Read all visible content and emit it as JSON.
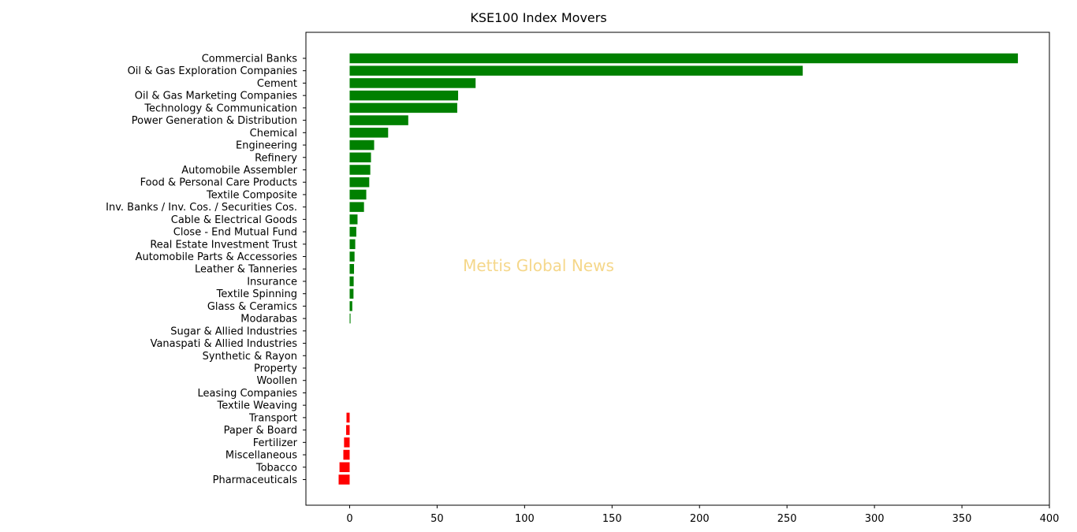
{
  "chart_data": {
    "type": "bar",
    "orientation": "horizontal",
    "title": "KSE100 Index Movers",
    "watermark": "Mettis Global News",
    "categories": [
      "Commercial Banks",
      "Oil & Gas Exploration Companies",
      "Cement",
      "Oil & Gas Marketing Companies",
      "Technology & Communication",
      "Power Generation & Distribution",
      "Chemical",
      "Engineering",
      "Refinery",
      "Automobile Assembler",
      "Food & Personal Care Products",
      "Textile Composite",
      "Inv. Banks / Inv. Cos. / Securities Cos.",
      "Cable & Electrical Goods",
      "Close - End Mutual Fund",
      "Real Estate Investment Trust",
      "Automobile Parts & Accessories",
      "Leather & Tanneries",
      "Insurance",
      "Textile Spinning",
      "Glass & Ceramics",
      "Modarabas",
      "Sugar & Allied Industries",
      "Vanaspati & Allied Industries",
      "Synthetic & Rayon",
      "Property",
      "Woollen",
      "Leasing Companies",
      "Textile Weaving",
      "Transport",
      "Paper & Board",
      "Fertilizer",
      "Miscellaneous",
      "Tobacco",
      "Pharmaceuticals"
    ],
    "values": [
      382,
      259,
      72,
      62,
      61.5,
      33.5,
      22,
      14,
      12.2,
      11.8,
      11.2,
      9.5,
      8.2,
      4.5,
      3.8,
      3.2,
      2.8,
      2.5,
      2.3,
      2.2,
      1.5,
      0.5,
      0,
      0,
      0,
      0,
      0,
      0,
      0,
      -1.8,
      -2.0,
      -3.2,
      -3.6,
      -5.8,
      -6.3
    ],
    "xlim": [
      -25,
      400
    ],
    "xticks": [
      0,
      50,
      100,
      150,
      200,
      250,
      300,
      350,
      400
    ],
    "xlabel": "",
    "ylabel": "",
    "positive_color": "#008000",
    "negative_color": "#ff0000",
    "grid": false
  }
}
